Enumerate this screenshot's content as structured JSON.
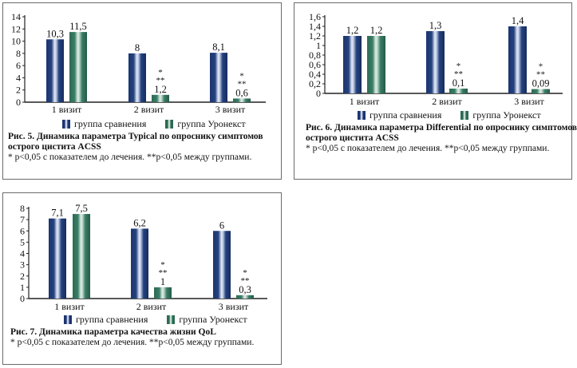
{
  "legend": {
    "series1": "группа сравнения",
    "series2": "группа Уронекст"
  },
  "colors": {
    "series1": "#1c3570",
    "series2": "#2c6b55"
  },
  "chart_data": [
    {
      "type": "bar",
      "title": "Рис. 5. Динамика параметра Typical по опроснику симптомов",
      "title2": "острого цистита ACSS",
      "footnote": "* p<0,05 с показателем до лечения. **p<0,05 между группами.",
      "categories": [
        "1 визит",
        "2 визит",
        "3 визит"
      ],
      "ylim": [
        0,
        14
      ],
      "yticks": [
        0,
        2,
        4,
        6,
        8,
        10,
        12,
        14
      ],
      "ytick_labels": [
        "0",
        "2",
        "4",
        "6",
        "8",
        "10",
        "12",
        "14"
      ],
      "series": [
        {
          "name": "группа сравнения",
          "values": [
            10.3,
            8,
            8.1
          ],
          "labels": [
            "10,3",
            "8",
            "8,1"
          ],
          "marks": [
            "",
            "",
            ""
          ]
        },
        {
          "name": "группа Уронекст",
          "values": [
            11.5,
            1.2,
            0.6
          ],
          "labels": [
            "11,5",
            "1,2",
            "0,6"
          ],
          "marks": [
            "",
            "*|**",
            "*|**"
          ]
        }
      ]
    },
    {
      "type": "bar",
      "title": "Рис. 6. Динамика параметра Differential по опроснику симптомов",
      "title2": "острого цистита ACSS",
      "footnote": "* p<0,05 с показателем до лечения. **p<0,05 между группами.",
      "categories": [
        "1 визит",
        "2 визит",
        "3 визит"
      ],
      "ylim": [
        0,
        1.6
      ],
      "yticks": [
        0,
        0.2,
        0.4,
        0.6,
        0.8,
        1,
        1.2,
        1.4,
        1.6
      ],
      "ytick_labels": [
        "0",
        "0,2",
        "0,4",
        "0,6",
        "0,8",
        "1",
        "1,2",
        "1,4",
        "1,6"
      ],
      "series": [
        {
          "name": "группа сравнения",
          "values": [
            1.2,
            1.3,
            1.4
          ],
          "labels": [
            "1,2",
            "1,3",
            "1,4"
          ],
          "marks": [
            "",
            "",
            ""
          ]
        },
        {
          "name": "группа Уронекст",
          "values": [
            1.2,
            0.1,
            0.09
          ],
          "labels": [
            "1,2",
            "0,1",
            "0,09"
          ],
          "marks": [
            "",
            "*|**",
            "*|**"
          ]
        }
      ]
    },
    {
      "type": "bar",
      "title": "Рис. 7. Динамика параметра качества жизни QoL",
      "title2": "",
      "footnote": "* p<0,05 с показателем до лечения. **p<0,05 между группами.",
      "categories": [
        "1 визит",
        "2 визит",
        "3 визит"
      ],
      "ylim": [
        0,
        8
      ],
      "yticks": [
        0,
        1,
        2,
        3,
        4,
        5,
        6,
        7,
        8
      ],
      "ytick_labels": [
        "0",
        "1",
        "2",
        "3",
        "4",
        "5",
        "6",
        "7",
        "8"
      ],
      "series": [
        {
          "name": "группа сравнения",
          "values": [
            7.1,
            6.2,
            6
          ],
          "labels": [
            "7,1",
            "6,2",
            "6"
          ],
          "marks": [
            "",
            "",
            ""
          ]
        },
        {
          "name": "группа Уронекст",
          "values": [
            7.5,
            1,
            0.3
          ],
          "labels": [
            "7,5",
            "1",
            "0,3"
          ],
          "marks": [
            "",
            "*|**",
            "*|**"
          ]
        }
      ]
    }
  ]
}
